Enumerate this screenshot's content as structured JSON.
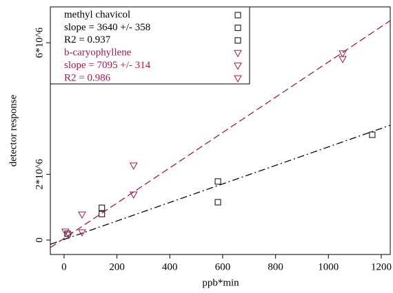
{
  "chart_data": {
    "type": "scatter",
    "xlabel": "ppb*min",
    "ylabel": "detector response",
    "xlim": [
      -52,
      1234
    ],
    "ylim": [
      -440000,
      7090000
    ],
    "xticks": [
      0,
      200,
      400,
      600,
      800,
      1000,
      1200
    ],
    "yticks": [
      0,
      {
        "value": 2000000,
        "label": "2*10^6"
      },
      {
        "value": 6000000,
        "label": "6*10^6"
      }
    ],
    "series": [
      {
        "name": "methyl chavicol",
        "color": "#000000",
        "marker": "square",
        "legend_notes": [
          "slope =  3640 +/-  358",
          "R2 =  0.937"
        ],
        "x": [
          13,
          143,
          143,
          582,
          582,
          1166
        ],
        "values": [
          190000,
          980000,
          790000,
          1780000,
          1150000,
          3200000
        ],
        "fit": {
          "dash": "dashdot",
          "x": [
            -52,
            1234
          ],
          "y": [
            -130000,
            3490000
          ]
        }
      },
      {
        "name": "b-caryophyllene",
        "color": "#9b1b55",
        "marker": "triangle-down",
        "legend_notes": [
          "slope =  7095 +/-  314",
          "R2 =  0.986"
        ],
        "x": [
          5,
          18,
          68,
          68,
          263,
          263,
          1054,
          1054
        ],
        "values": [
          250000,
          150000,
          770000,
          230000,
          2260000,
          1380000,
          5670000,
          5500000
        ],
        "fit": {
          "dash": "dashed",
          "x": [
            -52,
            1234
          ],
          "y": [
            -230000,
            6670000
          ]
        }
      }
    ]
  }
}
